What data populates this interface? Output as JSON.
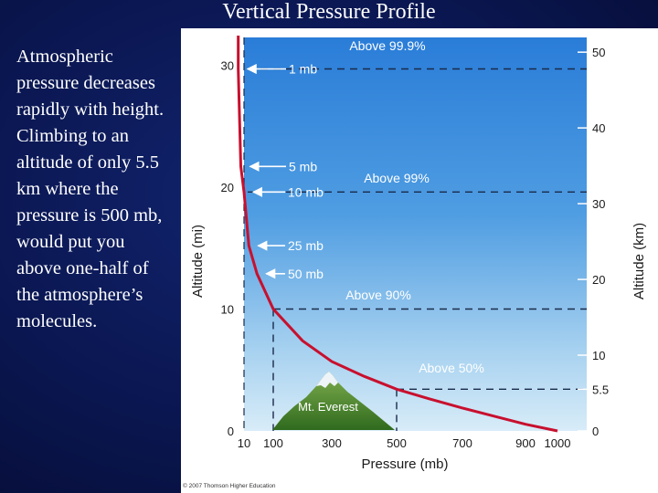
{
  "slide": {
    "title": "Vertical Pressure Profile",
    "body": "Atmospheric pressure decreases rapidly with height. Climbing to an altitude of only 5.5 km where the pressure is 500 mb, would put you above one-half of the atmosphere’s molecules."
  },
  "colors": {
    "slide_background": "#0a1650",
    "sky_top": "#2a7dd8",
    "sky_bottom": "#d8ecf8",
    "curve": "#c8102e",
    "dashed_lines": "#1a2a4a",
    "mountain": "#4e8a32",
    "text": "#ffffff"
  },
  "chart_data": {
    "type": "line",
    "xlabel": "Pressure (mb)",
    "ylabel": "Altitude (mi)",
    "ylabel_right": "Altitude (km)",
    "x_ticks": [
      10,
      100,
      300,
      500,
      700,
      900,
      1000
    ],
    "xlim": [
      10,
      1000
    ],
    "y_ticks_left": [
      0,
      10,
      20,
      30
    ],
    "ylim_mi": [
      0,
      31
    ],
    "y_ticks_right": [
      "0",
      "5.5",
      "10",
      "20",
      "30",
      "40",
      "50"
    ],
    "y_ticks_right_values_km": [
      0,
      5.5,
      10,
      20,
      30,
      40,
      50
    ],
    "grid": false,
    "series": [
      {
        "x": [
          1000,
          900,
          800,
          700,
          600,
          500,
          400,
          300,
          200,
          100,
          50,
          25,
          10,
          5,
          1
        ],
        "y": [
          0,
          0.55,
          1.21,
          1.88,
          2.63,
          3.42,
          4.48,
          5.69,
          7.4,
          10.0,
          12.9,
          15.2,
          19.6,
          21.7,
          29.7
        ]
      }
    ],
    "annotations": [
      {
        "label": "1 mb",
        "x": 1,
        "y": 29.7
      },
      {
        "label": "5 mb",
        "x": 5,
        "y": 21.7
      },
      {
        "label": "10 mb",
        "x": 10,
        "y": 19.6
      },
      {
        "label": "25 mb",
        "x": 25,
        "y": 15.2
      },
      {
        "label": "50 mb",
        "x": 50,
        "y": 12.9
      }
    ],
    "regions": [
      {
        "label": "Above 99.9%",
        "y": 29.7
      },
      {
        "label": "Above 99%",
        "y": 19.6
      },
      {
        "label": "Above 90%",
        "y": 10.0
      },
      {
        "label": "Above 50%",
        "y": 3.42
      }
    ],
    "drop_lines_x": [
      100,
      500
    ],
    "landmark": "Mt. Everest",
    "credit": "© 2007 Thomson Higher Education"
  }
}
